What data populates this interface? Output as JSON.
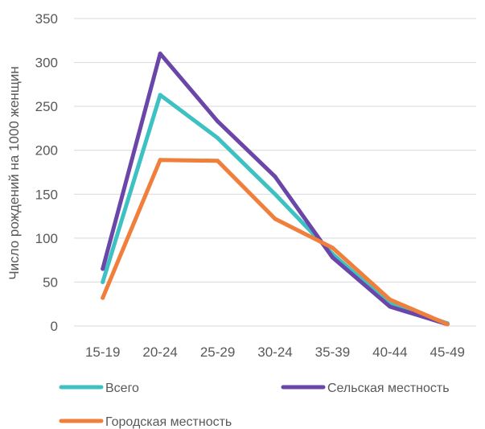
{
  "chart_data": {
    "type": "line",
    "title": "",
    "xlabel": "",
    "ylabel": "Число рождений на 1000 женщин",
    "ylim": [
      0,
      350
    ],
    "yticks": [
      0,
      50,
      100,
      150,
      200,
      250,
      300,
      350
    ],
    "grid": true,
    "legend_position": "bottom",
    "categories": [
      "15-19",
      "20-24",
      "25-29",
      "30-24",
      "35-39",
      "40-44",
      "45-49"
    ],
    "series": [
      {
        "name": "Всего",
        "color": "#3EC1C3",
        "values": [
          50,
          263,
          214,
          150,
          82,
          25,
          3
        ]
      },
      {
        "name": "Сельская местность",
        "color": "#6A46A8",
        "values": [
          65,
          310,
          233,
          170,
          78,
          22,
          2
        ]
      },
      {
        "name": "Городская местность",
        "color": "#F07F3C",
        "values": [
          32,
          189,
          188,
          122,
          89,
          30,
          2
        ]
      }
    ]
  }
}
